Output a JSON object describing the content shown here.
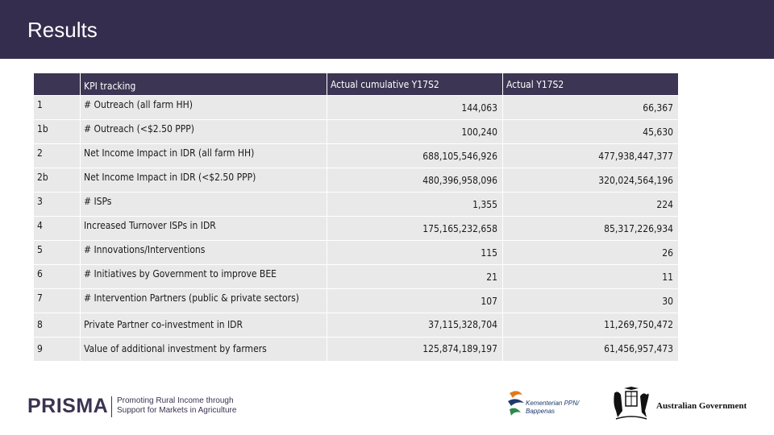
{
  "header": {
    "title": "Results",
    "bg_color": "#352d4d"
  },
  "table": {
    "columns": [
      "",
      "KPI tracking",
      "Actual cumulative Y17S2",
      "Actual Y17S2"
    ],
    "rows": [
      {
        "num": "1",
        "kpi": "# Outreach (all farm HH)",
        "cumulative": "144,063",
        "y17s2": "66,367"
      },
      {
        "num": "1b",
        "kpi": "# Outreach (<$2.50 PPP)",
        "cumulative": "100,240",
        "y17s2": "45,630"
      },
      {
        "num": "2",
        "kpi": "Net Income Impact in IDR (all farm HH)",
        "cumulative": "688,105,546,926",
        "y17s2": "477,938,447,377"
      },
      {
        "num": "2b",
        "kpi": "Net Income Impact in IDR (<$2.50 PPP)",
        "cumulative": "480,396,958,096",
        "y17s2": "320,024,564,196"
      },
      {
        "num": "3",
        "kpi": "# ISPs",
        "cumulative": "1,355",
        "y17s2": "224"
      },
      {
        "num": "4",
        "kpi": "Increased Turnover ISPs in IDR",
        "cumulative": "175,165,232,658",
        "y17s2": "85,317,226,934"
      },
      {
        "num": "5",
        "kpi": "# Innovations/Interventions",
        "cumulative": "115",
        "y17s2": "26"
      },
      {
        "num": "6",
        "kpi": "# Initiatives by Government to improve BEE",
        "cumulative": "21",
        "y17s2": "11"
      },
      {
        "num": "7",
        "kpi": "# Intervention Partners (public & private sectors)",
        "cumulative": "107",
        "y17s2": "30"
      },
      {
        "num": "8",
        "kpi": "Private Partner co-investment in IDR",
        "cumulative": "37,115,328,704",
        "y17s2": "11,269,750,472"
      },
      {
        "num": "9",
        "kpi": "Value of additional investment by farmers",
        "cumulative": "125,874,189,197",
        "y17s2": "61,456,957,473"
      }
    ]
  },
  "footer": {
    "prisma_logo": "PRISMA",
    "prisma_tagline_1": "Promoting Rural Income through",
    "prisma_tagline_2": "Support for Markets in Agriculture",
    "kementerian_1": "Kementerian PPN/",
    "kementerian_2": "Bappenas",
    "aus_gov": "Australian Government"
  }
}
